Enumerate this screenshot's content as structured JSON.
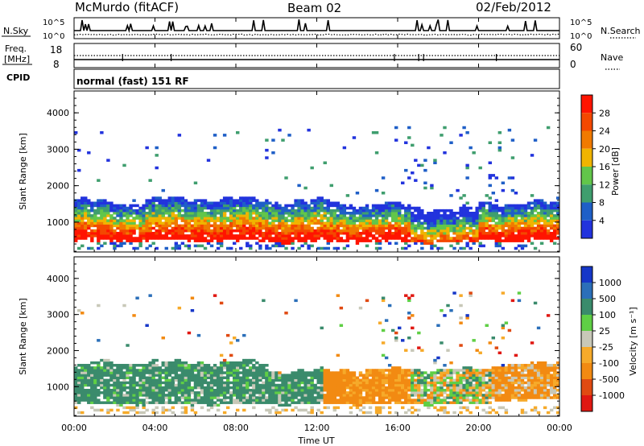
{
  "header": {
    "station": "McMurdo (fitACF)",
    "beam": "Beam 02",
    "date": "02/Feb/2012"
  },
  "top_panels": {
    "nsky_label": "N.Sky",
    "nsearch_label": "N.Search",
    "noise_ticks_left": [
      "10^5",
      "10^0"
    ],
    "noise_ticks_right": [
      "10^5",
      "10^0"
    ],
    "freq_label_line1": "Freq.",
    "freq_label_line2": "[MHz]",
    "freq_ticks": [
      "18",
      "8"
    ],
    "nave_label": "Nave",
    "nave_ticks": [
      "60",
      "0"
    ],
    "cpid_label": "CPID",
    "cpid_value": "normal (fast) 151 RF"
  },
  "axes": {
    "x_ticks": [
      "00:00",
      "04:00",
      "08:00",
      "12:00",
      "16:00",
      "20:00",
      "00:00"
    ],
    "x_label": "Time UT",
    "y_ticks": [
      "1000",
      "2000",
      "3000",
      "4000"
    ],
    "y_label": "Slant Range [km]"
  },
  "colors": {
    "power": [
      "#2233dd",
      "#1f5fc7",
      "#3f9e6e",
      "#62c64a",
      "#f0b400",
      "#f07a00",
      "#f44800",
      "#ff1400"
    ],
    "velocity": [
      "#1637c8",
      "#2b6fb9",
      "#3a8b6c",
      "#5fcf45",
      "#c8c8b8",
      "#f6aa2a",
      "#f28a12",
      "#e04a12",
      "#e01812"
    ]
  },
  "chart_data": [
    {
      "type": "heatmap",
      "title": "",
      "xlabel": "",
      "ylabel": "Slant Range [km]",
      "xlim": [
        0,
        24
      ],
      "ylim": [
        180,
        4600
      ],
      "colorbar": {
        "label": "Power [dB]",
        "range": [
          0,
          32
        ],
        "ticks": [
          "4",
          "8",
          "12",
          "16",
          "20",
          "24",
          "28"
        ]
      },
      "bands": [
        {
          "from": 0,
          "to": 0.8,
          "rmin": 450,
          "rmax": 1580
        },
        {
          "from": 0.8,
          "to": 3.5,
          "rmin": 430,
          "rmax": 1500
        },
        {
          "from": 3.5,
          "to": 9.5,
          "rmin": 450,
          "rmax": 1600
        },
        {
          "from": 9.5,
          "to": 13.0,
          "rmin": 420,
          "rmax": 1550
        },
        {
          "from": 13.0,
          "to": 16.5,
          "rmin": 430,
          "rmax": 1450
        },
        {
          "from": 16.5,
          "to": 20.0,
          "rmin": 420,
          "rmax": 1350
        },
        {
          "from": 20.0,
          "to": 24.0,
          "rmin": 450,
          "rmax": 1500
        }
      ]
    },
    {
      "type": "heatmap",
      "title": "",
      "xlabel": "Time UT",
      "ylabel": "Slant Range [km]",
      "xlim": [
        0,
        24
      ],
      "ylim": [
        180,
        4600
      ],
      "colorbar": {
        "label": "Velocity [m s⁻¹]",
        "range": [
          -1250,
          1250
        ],
        "ticks": [
          "1000",
          "500",
          "100",
          "25",
          "-25",
          "-100",
          "-500",
          "-1000"
        ]
      },
      "bands": [
        {
          "from": 0,
          "to": 0.8,
          "rmin": 500,
          "rmax": 1550
        },
        {
          "from": 0.8,
          "to": 9.5,
          "rmin": 480,
          "rmax": 1650
        },
        {
          "from": 9.5,
          "to": 13.0,
          "rmin": 480,
          "rmax": 1400
        },
        {
          "from": 13.0,
          "to": 20.5,
          "rmin": 480,
          "rmax": 1450
        },
        {
          "from": 20.5,
          "to": 24.0,
          "rmin": 600,
          "rmax": 1600
        }
      ]
    }
  ]
}
